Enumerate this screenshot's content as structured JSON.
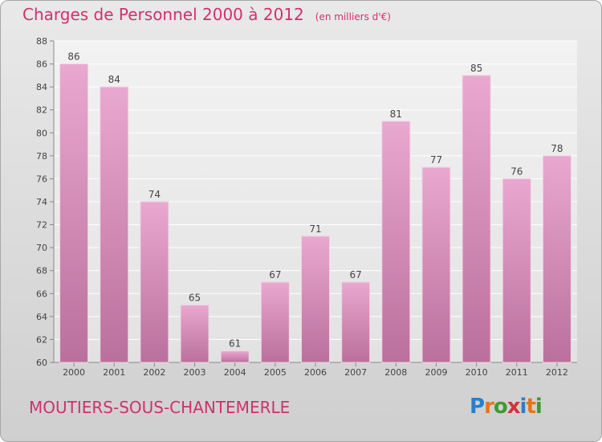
{
  "header": {
    "title": "Charges de Personnel 2000 à 2012",
    "unit": "(en milliers d'€)"
  },
  "footer": {
    "commune": "MOUTIERS-SOUS-CHANTEMERLE",
    "logo_letters": [
      "P",
      "r",
      "o",
      "x",
      "i",
      "t",
      "i"
    ],
    "logo_colors": [
      "#2a7fc8",
      "#e8741a",
      "#3e9a32",
      "#d6303a",
      "#2a7fc8",
      "#e8741a",
      "#3e9a32"
    ]
  },
  "colors": {
    "accent": "#d1306d",
    "bar_top": "#e9a8cf",
    "bar_bottom": "#ba709c"
  },
  "chart_data": {
    "type": "bar",
    "title": "Charges de Personnel 2000 à 2012",
    "subtitle": "(en milliers d'€)",
    "categories": [
      "2000",
      "2001",
      "2002",
      "2003",
      "2004",
      "2005",
      "2006",
      "2007",
      "2008",
      "2009",
      "2010",
      "2011",
      "2012"
    ],
    "values": [
      86,
      84,
      74,
      65,
      61,
      67,
      71,
      67,
      81,
      77,
      85,
      76,
      78
    ],
    "ylim": [
      60,
      88
    ],
    "yticks": [
      60,
      62,
      64,
      66,
      68,
      70,
      72,
      74,
      76,
      78,
      80,
      82,
      84,
      86,
      88
    ],
    "xlabel": "",
    "ylabel": "",
    "grid": true
  }
}
